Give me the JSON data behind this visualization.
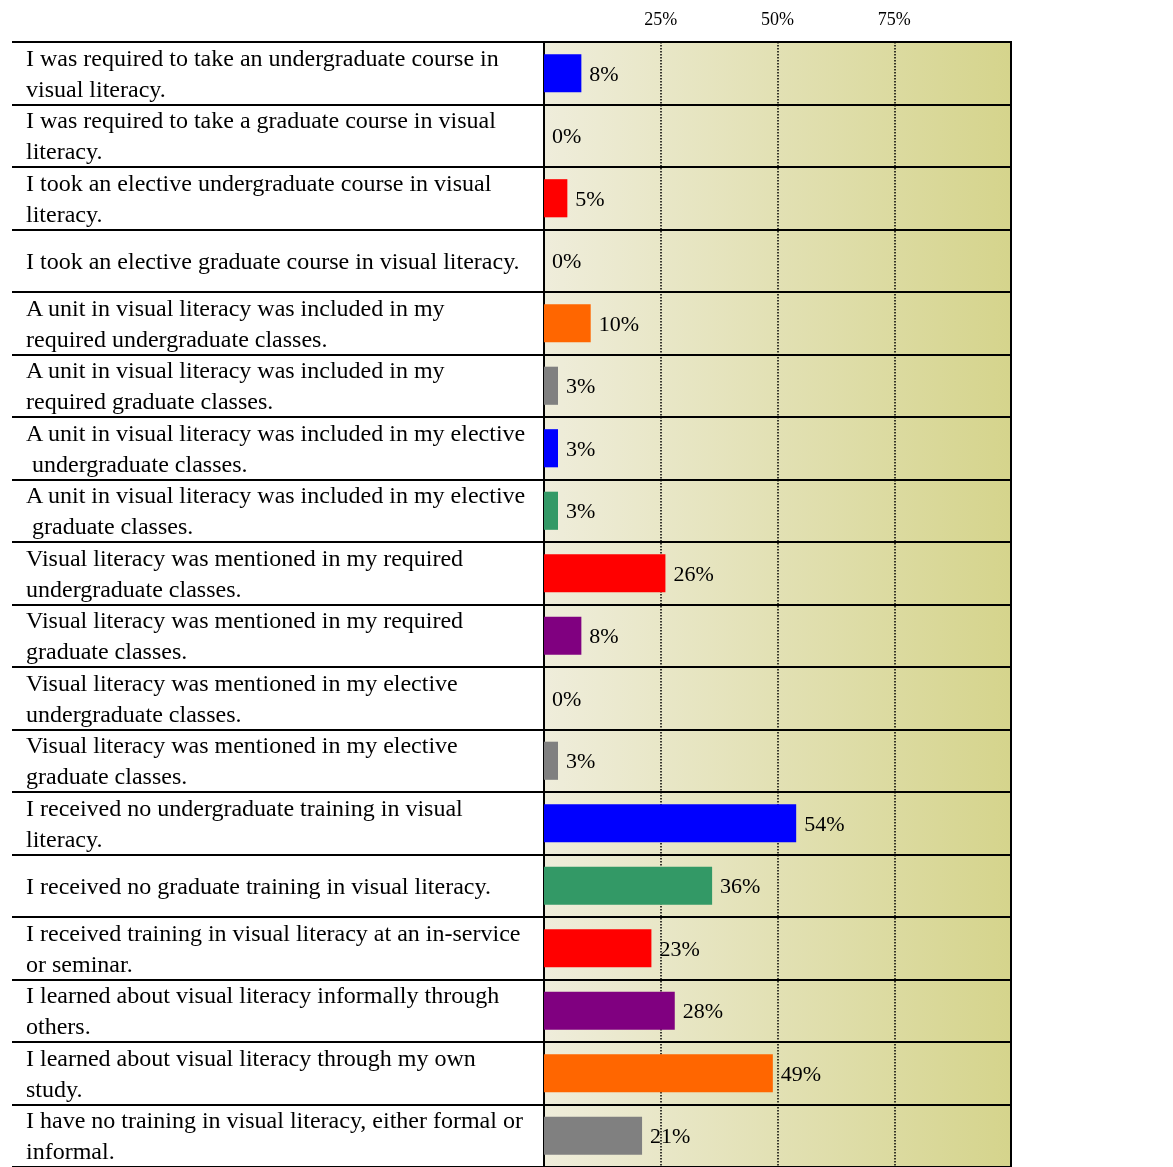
{
  "chart_data": {
    "type": "bar",
    "orientation": "horizontal",
    "categories": [
      "I was required to take an undergraduate course in visual literacy.",
      "I was required to take a graduate course in visual literacy.",
      "I took an elective undergraduate course in visual literacy.",
      "I took an elective graduate course in visual literacy.",
      "A unit in visual literacy was included in my required undergraduate classes.",
      "A unit in visual literacy was included in my required graduate classes.",
      "A unit in visual literacy was included in my elective undergraduate classes.",
      "A unit in visual literacy was included in my elective graduate classes.",
      "Visual literacy was mentioned in my required undergraduate classes.",
      "Visual literacy was mentioned in my required graduate classes.",
      "Visual literacy was mentioned in my elective undergraduate classes.",
      "Visual literacy was mentioned in my elective graduate classes.",
      "I received no undergraduate training in visual literacy.",
      "I received no graduate training in visual literacy.",
      "I received training in visual literacy at an in-service or seminar.",
      "I learned about visual literacy informally through others.",
      "I learned about visual literacy through my own study.",
      "I have no training in visual literacy, either formal or informal."
    ],
    "values": [
      8,
      0,
      5,
      0,
      10,
      3,
      3,
      3,
      26,
      8,
      0,
      3,
      54,
      36,
      23,
      28,
      49,
      21
    ],
    "colors": [
      "#0000ff",
      "#339966",
      "#ff0000",
      "#800080",
      "#ff6600",
      "#808080",
      "#0000ff",
      "#339966",
      "#ff0000",
      "#800080",
      "#ff6600",
      "#808080",
      "#0000ff",
      "#339966",
      "#ff0000",
      "#800080",
      "#ff6600",
      "#808080"
    ],
    "value_labels": [
      "8%",
      "0%",
      "5%",
      "0%",
      "10%",
      "3%",
      "3%",
      "3%",
      "26%",
      "8%",
      "0%",
      "3%",
      "54%",
      "36%",
      "23%",
      "28%",
      "49%",
      "21%"
    ],
    "xlim": [
      0,
      100
    ],
    "xticks": [
      {
        "value": 25,
        "label": "25%"
      },
      {
        "value": 50,
        "label": "50%"
      },
      {
        "value": 75,
        "label": "75%"
      }
    ],
    "grid": "x"
  }
}
